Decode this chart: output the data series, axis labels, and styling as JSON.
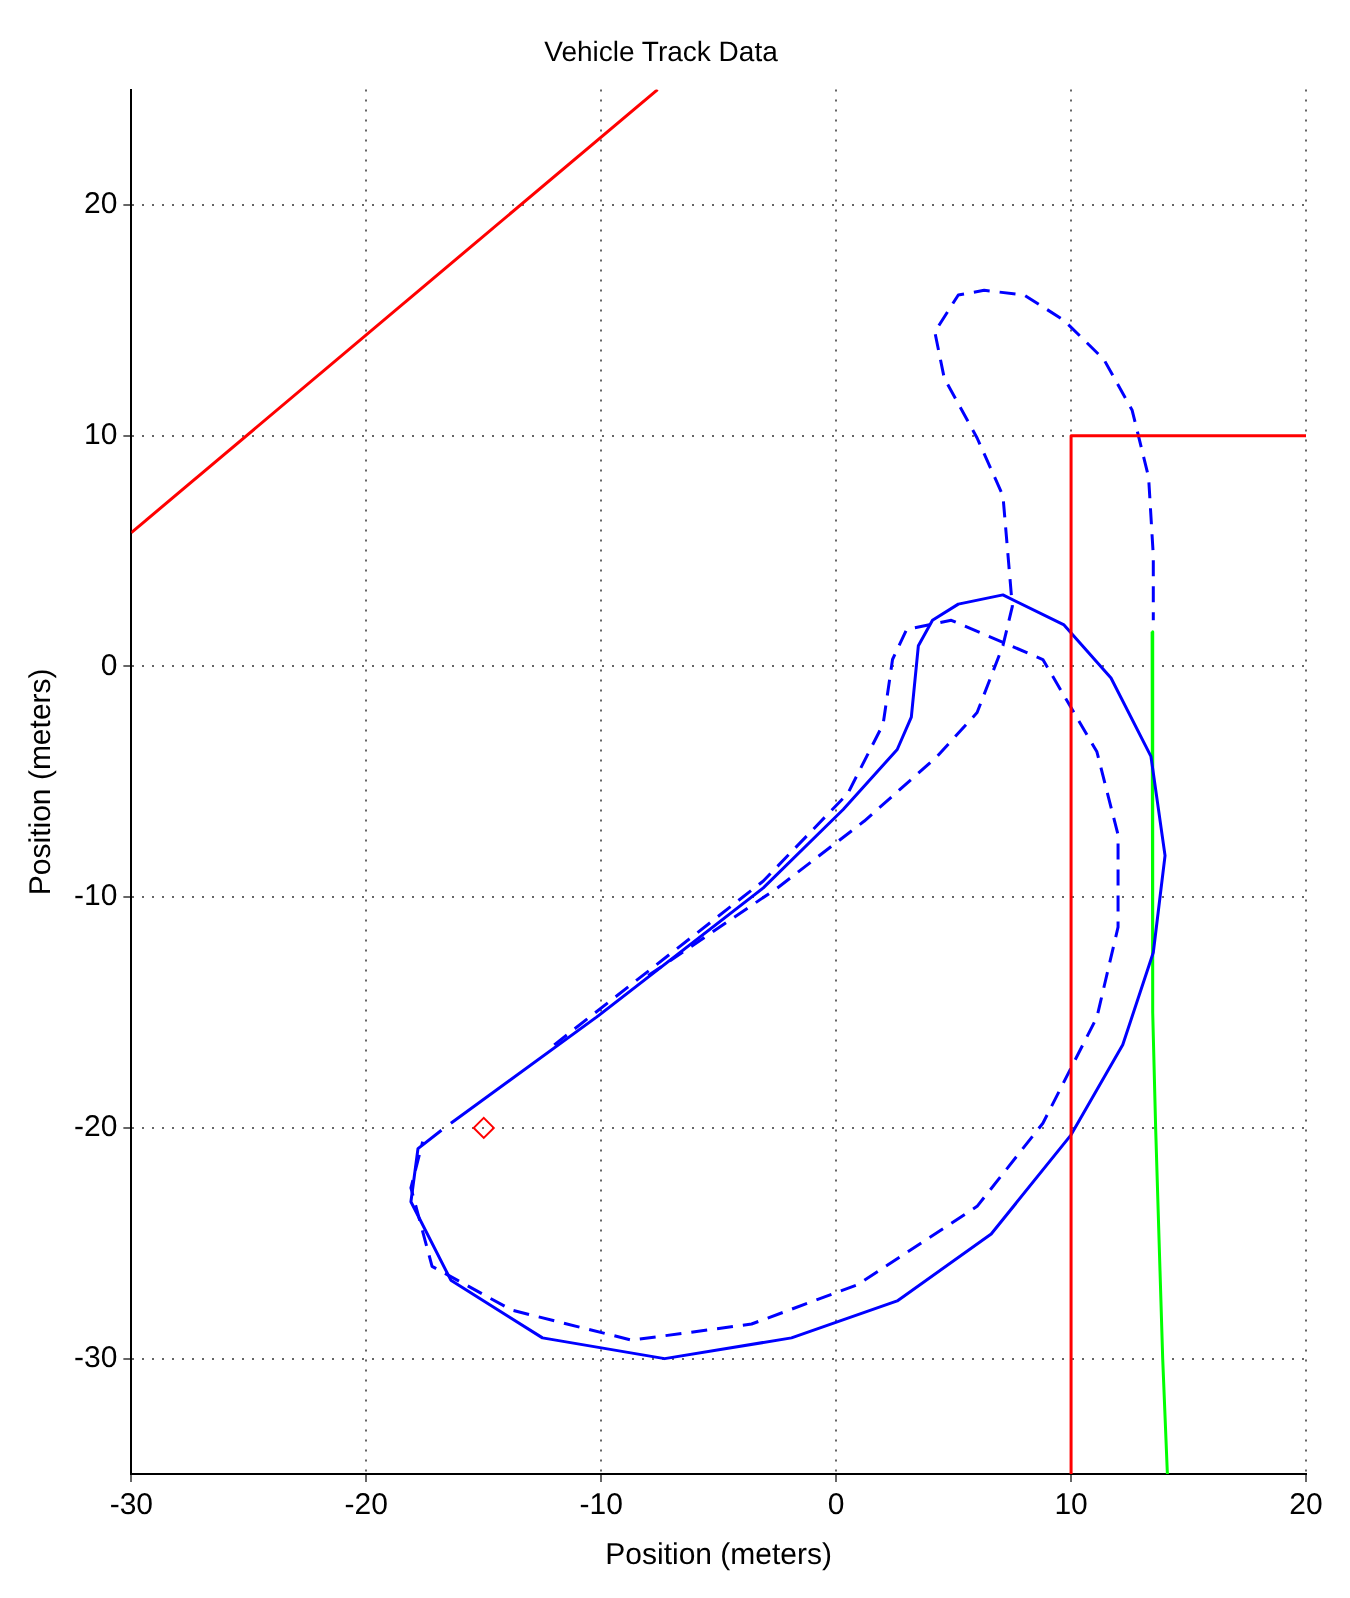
{
  "chart_data": {
    "type": "line",
    "title": "Vehicle Track Data",
    "xlabel": "Position (meters)",
    "ylabel": "Position (meters)",
    "xlim": [
      -30,
      20
    ],
    "ylim": [
      -35,
      25
    ],
    "xticks": [
      -30,
      -20,
      -10,
      0,
      10,
      20
    ],
    "yticks": [
      -30,
      -20,
      -10,
      0,
      10,
      20
    ],
    "grid": true,
    "legend": false,
    "marker": "none",
    "series": [
      {
        "color": "#ff0000",
        "line_style": "solid",
        "x": [
          -30,
          -7.6
        ],
        "values": [
          5.8,
          25
        ]
      },
      {
        "color": "#ff0000",
        "line_style": "solid",
        "x": [
          10,
          10,
          20
        ],
        "values": [
          -35,
          10,
          10
        ]
      },
      {
        "color": "#0000ff",
        "line_style": "dashed",
        "x": [
          -8.0,
          -2.5,
          1.2,
          4.3,
          6.0,
          7.1,
          7.5,
          7.1,
          6.0,
          4.6,
          4.2,
          5.2,
          6.3,
          8.0,
          9.7,
          11.4,
          12.6,
          13.3,
          13.5,
          13.5
        ],
        "values": [
          -13.4,
          -9.6,
          -6.7,
          -3.9,
          -2.0,
          0.9,
          2.6,
          7.4,
          9.9,
          12.5,
          14.5,
          16.1,
          16.3,
          16.1,
          15.0,
          13.3,
          11.1,
          8.2,
          4.8,
          2.0
        ]
      },
      {
        "color": "#0000ff",
        "line_style": "dashed",
        "x": [
          -12.0,
          -3.1,
          0.5,
          2.0,
          2.4,
          3.0,
          4.9,
          8.8,
          11.1,
          12.0,
          12.0,
          11.1,
          8.8,
          6.0,
          0.9,
          -3.6,
          -8.7,
          -13.8,
          -17.2,
          -18.1,
          -17.6
        ],
        "values": [
          -16.4,
          -9.3,
          -5.5,
          -2.5,
          0.3,
          1.6,
          2.0,
          0.3,
          -3.7,
          -7.3,
          -11.3,
          -15.2,
          -19.8,
          -23.4,
          -26.8,
          -28.5,
          -29.2,
          -27.9,
          -26.0,
          -22.6,
          -20.6
        ]
      },
      {
        "color": "#0000ff",
        "line_style": "solid",
        "x": [
          -16.4,
          -10.2,
          -3.1,
          0.3,
          2.6,
          3.2,
          3.5,
          4.1,
          5.2,
          7.1,
          9.7,
          11.7,
          13.4,
          14.0,
          13.5,
          12.2,
          10.0,
          6.6,
          2.6,
          -1.9,
          -7.3,
          -12.5,
          -16.4,
          -18.1,
          -17.8,
          -16.8
        ],
        "values": [
          -19.8,
          -15.2,
          -9.6,
          -6.2,
          -3.6,
          -2.2,
          0.9,
          2.0,
          2.7,
          3.1,
          1.8,
          -0.5,
          -3.9,
          -8.2,
          -12.4,
          -16.4,
          -20.3,
          -24.6,
          -27.5,
          -29.1,
          -30.0,
          -29.1,
          -26.6,
          -23.2,
          -20.9,
          -20.1
        ]
      },
      {
        "color": "#00ff00",
        "line_style": "solid",
        "x": [
          13.45,
          13.45,
          13.5,
          13.6,
          13.9,
          14.1
        ],
        "values": [
          1.5,
          -10,
          -15,
          -20,
          -30,
          -35
        ]
      },
      {
        "type": "scatter",
        "color": "#ff0000",
        "marker": "diamond",
        "x": [
          -15
        ],
        "values": [
          -20
        ]
      }
    ]
  }
}
